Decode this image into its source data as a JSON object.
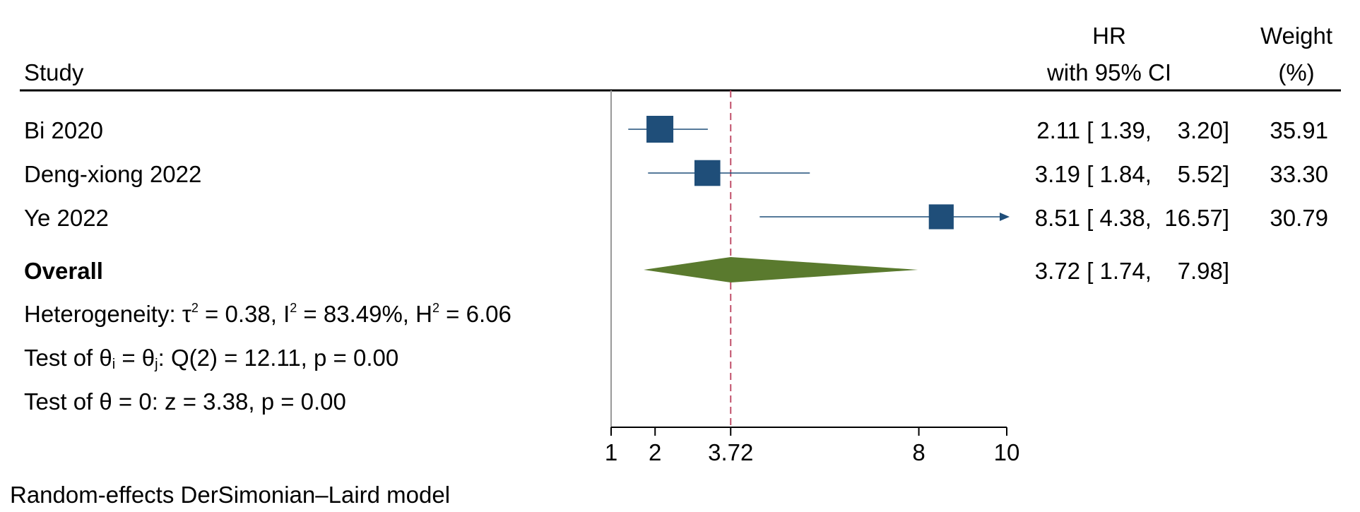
{
  "header": {
    "study": "Study",
    "hr_line1": "HR",
    "hr_line2": "with 95% CI",
    "weight_line1": "Weight",
    "weight_line2": "(%)"
  },
  "stats": {
    "het_prefix": "Heterogeneity: ",
    "tau": "τ",
    "tau_val": " = 0.38, ",
    "i": "I",
    "i_val": " = 83.49%, ",
    "h": "H",
    "h_val": " = 6.06",
    "sq": "2",
    "test1_a": "Test of θ",
    "test1_i": "i",
    "test1_b": " = θ",
    "test1_j": "j",
    "test1_c": ": Q(2) = 12.11, p = 0.00",
    "test2": "Test of θ = 0: z = 3.38, p = 0.00"
  },
  "footer": "Random-effects DerSimonian–Laird model",
  "colors": {
    "marker": "#1f4e79",
    "diamond": "#5a7a2e",
    "ref_line": "#c0506a",
    "null_line": "#999999"
  },
  "chart_data": {
    "type": "forest",
    "xlabel_ticks": [
      "1",
      "2",
      "3.72",
      "8",
      "10"
    ],
    "xlim": [
      1,
      10
    ],
    "null_value": 1,
    "overall_line": 3.72,
    "studies": [
      {
        "name": "Bi 2020",
        "hr": 2.11,
        "lo": 1.39,
        "hi": 3.2,
        "text": "2.11 [ 1.39,    3.20]",
        "weight": "35.91",
        "arrow": false
      },
      {
        "name": "Deng-xiong 2022",
        "hr": 3.19,
        "lo": 1.84,
        "hi": 5.52,
        "text": "3.19 [ 1.84,    5.52]",
        "weight": "33.30",
        "arrow": false
      },
      {
        "name": "Ye 2022",
        "hr": 8.51,
        "lo": 4.38,
        "hi": 16.57,
        "text": "8.51 [ 4.38,  16.57]",
        "weight": "30.79",
        "arrow": true
      }
    ],
    "overall": {
      "name": "Overall",
      "hr": 3.72,
      "lo": 1.74,
      "hi": 7.98,
      "text": "3.72 [ 1.74,    7.98]"
    }
  }
}
